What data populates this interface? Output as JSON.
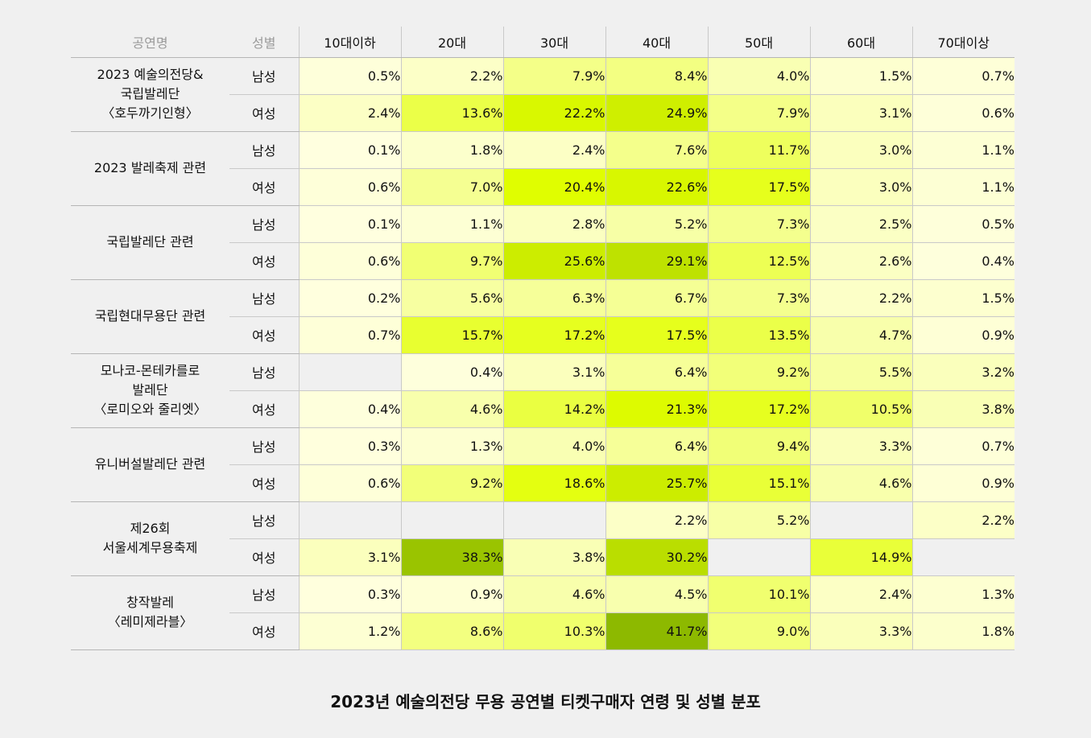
{
  "chart_data": {
    "type": "heatmap",
    "title": "2023년 예술의전당 무용 공연별 티켓구매자 연령 및 성별 분포",
    "header": {
      "performance": "공연명",
      "gender": "성별"
    },
    "columns": [
      "10대이하",
      "20대",
      "30대",
      "40대",
      "50대",
      "60대",
      "70대이상"
    ],
    "rows": [
      {
        "performance": [
          "2023 예술의전당&",
          "국립발레단",
          "〈호두까기인형〉"
        ],
        "male": {
          "label": "남성",
          "values": [
            0.5,
            2.2,
            7.9,
            8.4,
            4.0,
            1.5,
            0.7
          ]
        },
        "female": {
          "label": "여성",
          "values": [
            2.4,
            13.6,
            22.2,
            24.9,
            7.9,
            3.1,
            0.6
          ]
        }
      },
      {
        "performance": [
          "2023 발레축제 관련"
        ],
        "male": {
          "label": "남성",
          "values": [
            0.1,
            1.8,
            2.4,
            7.6,
            11.7,
            3.0,
            1.1
          ]
        },
        "female": {
          "label": "여성",
          "values": [
            0.6,
            7.0,
            20.4,
            22.6,
            17.5,
            3.0,
            1.1
          ]
        }
      },
      {
        "performance": [
          "국립발레단 관련"
        ],
        "male": {
          "label": "남성",
          "values": [
            0.1,
            1.1,
            2.8,
            5.2,
            7.3,
            2.5,
            0.5
          ]
        },
        "female": {
          "label": "여성",
          "values": [
            0.6,
            9.7,
            25.6,
            29.1,
            12.5,
            2.6,
            0.4
          ]
        }
      },
      {
        "performance": [
          "국립현대무용단 관련"
        ],
        "male": {
          "label": "남성",
          "values": [
            0.2,
            5.6,
            6.3,
            6.7,
            7.3,
            2.2,
            1.5
          ]
        },
        "female": {
          "label": "여성",
          "values": [
            0.7,
            15.7,
            17.2,
            17.5,
            13.5,
            4.7,
            0.9
          ]
        }
      },
      {
        "performance": [
          "모나코-몬테카를로",
          "발레단",
          "〈로미오와 줄리엣〉"
        ],
        "male": {
          "label": "남성",
          "values": [
            null,
            0.4,
            3.1,
            6.4,
            9.2,
            5.5,
            3.2
          ]
        },
        "female": {
          "label": "여성",
          "values": [
            0.4,
            4.6,
            14.2,
            21.3,
            17.2,
            10.5,
            3.8
          ]
        }
      },
      {
        "performance": [
          "유니버설발레단 관련"
        ],
        "male": {
          "label": "남성",
          "values": [
            0.3,
            1.3,
            4.0,
            6.4,
            9.4,
            3.3,
            0.7
          ]
        },
        "female": {
          "label": "여성",
          "values": [
            0.6,
            9.2,
            18.6,
            25.7,
            15.1,
            4.6,
            0.9
          ]
        }
      },
      {
        "performance": [
          "제26회",
          "서울세계무용축제"
        ],
        "male": {
          "label": "남성",
          "values": [
            null,
            null,
            null,
            2.2,
            5.2,
            null,
            2.2
          ]
        },
        "female": {
          "label": "여성",
          "values": [
            3.1,
            38.3,
            3.8,
            30.2,
            null,
            14.9,
            null
          ]
        }
      },
      {
        "performance": [
          "창작발레",
          "〈레미제라블〉"
        ],
        "male": {
          "label": "남성",
          "values": [
            0.3,
            0.9,
            4.6,
            4.5,
            10.1,
            2.4,
            1.3
          ]
        },
        "female": {
          "label": "여성",
          "values": [
            1.2,
            8.6,
            10.3,
            41.7,
            9.0,
            3.3,
            1.8
          ]
        }
      }
    ],
    "value_suffix": "%",
    "color_scale": {
      "empty": "#f0f0f0",
      "low": "#ffffe0",
      "mid": "#e2ff00",
      "high": "#8cb800"
    }
  }
}
